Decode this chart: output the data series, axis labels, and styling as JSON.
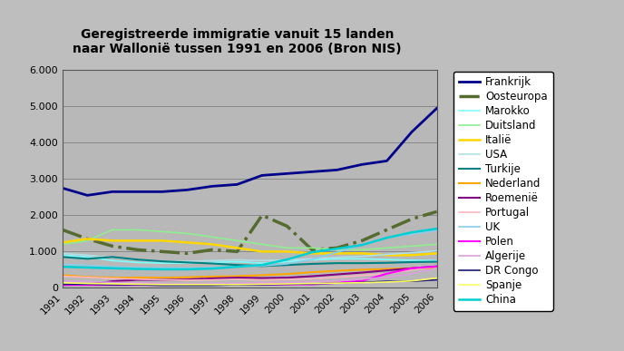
{
  "title_line1": "Geregistreerde immigratie vanuit 15 landen",
  "title_line2": "naar Wallonië tussen 1991 en 2006 (Bron NIS)",
  "years": [
    1991,
    1992,
    1993,
    1994,
    1995,
    1996,
    1997,
    1998,
    1999,
    2000,
    2001,
    2002,
    2003,
    2004,
    2005,
    2006
  ],
  "series": {
    "Frankrijk": {
      "color": "#00008B",
      "linestyle": "-",
      "linewidth": 2.0,
      "data": [
        2750,
        2550,
        2650,
        2650,
        2650,
        2700,
        2800,
        2850,
        3100,
        3150,
        3200,
        3250,
        3400,
        3500,
        4300,
        4950
      ]
    },
    "Oosteuropa": {
      "color": "#556B2F",
      "linestyle": "-.",
      "linewidth": 2.5,
      "data": [
        1600,
        1350,
        1150,
        1050,
        1000,
        950,
        1050,
        1000,
        2000,
        1700,
        1050,
        1100,
        1300,
        1600,
        1900,
        2100
      ]
    },
    "Marokko": {
      "color": "#7FFFFF",
      "linestyle": "-",
      "linewidth": 1.2,
      "data": [
        900,
        850,
        750,
        700,
        680,
        680,
        700,
        720,
        680,
        720,
        770,
        800,
        800,
        780,
        760,
        750
      ]
    },
    "Duitsland": {
      "color": "#90EE90",
      "linestyle": "-",
      "linewidth": 1.2,
      "data": [
        1200,
        1300,
        1600,
        1600,
        1550,
        1500,
        1400,
        1300,
        1200,
        1100,
        1100,
        1050,
        1050,
        1100,
        1150,
        1200
      ]
    },
    "Italië": {
      "color": "#FFD700",
      "linestyle": "-",
      "linewidth": 1.8,
      "data": [
        1250,
        1350,
        1300,
        1300,
        1300,
        1250,
        1200,
        1100,
        1000,
        1000,
        950,
        950,
        950,
        900,
        900,
        950
      ]
    },
    "USA": {
      "color": "#B0E0E6",
      "linestyle": "-",
      "linewidth": 1.2,
      "data": [
        950,
        900,
        830,
        780,
        720,
        730,
        750,
        770,
        750,
        770,
        800,
        840,
        870,
        920,
        970,
        1020
      ]
    },
    "Turkije": {
      "color": "#008080",
      "linestyle": "-",
      "linewidth": 1.5,
      "data": [
        850,
        800,
        850,
        780,
        730,
        700,
        670,
        630,
        600,
        630,
        660,
        680,
        680,
        690,
        710,
        720
      ]
    },
    "Nederland": {
      "color": "#FFA500",
      "linestyle": "-",
      "linewidth": 1.5,
      "data": [
        350,
        300,
        280,
        280,
        280,
        290,
        310,
        320,
        350,
        380,
        430,
        470,
        500,
        520,
        540,
        550
      ]
    },
    "Roemenië": {
      "color": "#800080",
      "linestyle": "-",
      "linewidth": 1.5,
      "data": [
        80,
        90,
        180,
        220,
        220,
        230,
        260,
        280,
        270,
        280,
        320,
        370,
        420,
        480,
        540,
        590
      ]
    },
    "Portugal": {
      "color": "#FFB6C1",
      "linestyle": "-",
      "linewidth": 1.2,
      "data": [
        320,
        290,
        260,
        240,
        220,
        210,
        220,
        230,
        215,
        230,
        250,
        290,
        340,
        390,
        490,
        590
      ]
    },
    "UK": {
      "color": "#87CEEB",
      "linestyle": "-",
      "linewidth": 1.2,
      "data": [
        650,
        620,
        580,
        560,
        550,
        545,
        565,
        585,
        605,
        660,
        780,
        980,
        1180,
        1380,
        1480,
        1580
      ]
    },
    "Polen": {
      "color": "#FF00FF",
      "linestyle": "-",
      "linewidth": 1.5,
      "data": [
        80,
        80,
        80,
        80,
        80,
        85,
        90,
        95,
        90,
        95,
        95,
        140,
        190,
        390,
        540,
        590
      ]
    },
    "Algerije": {
      "color": "#DDA0DD",
      "linestyle": "-",
      "linewidth": 1.2,
      "data": [
        190,
        170,
        150,
        140,
        120,
        110,
        120,
        130,
        140,
        150,
        170,
        190,
        240,
        290,
        390,
        540
      ]
    },
    "DR Congo": {
      "color": "#191970",
      "linestyle": "-",
      "linewidth": 1.2,
      "data": [
        100,
        100,
        85,
        85,
        65,
        65,
        65,
        85,
        85,
        100,
        110,
        130,
        150,
        180,
        180,
        220
      ]
    },
    "Spanje": {
      "color": "#FFFF66",
      "linestyle": "-",
      "linewidth": 1.2,
      "data": [
        140,
        120,
        110,
        100,
        90,
        90,
        90,
        90,
        100,
        110,
        120,
        130,
        140,
        160,
        190,
        270
      ]
    },
    "China": {
      "color": "#00CED1",
      "linestyle": "-",
      "linewidth": 1.8,
      "data": [
        580,
        560,
        540,
        520,
        510,
        510,
        530,
        580,
        630,
        780,
        980,
        1080,
        1180,
        1380,
        1530,
        1630
      ]
    }
  },
  "ylim": [
    0,
    6000
  ],
  "yticks": [
    0,
    1000,
    2000,
    3000,
    4000,
    5000,
    6000
  ],
  "background_color": "#BEBEBE",
  "plot_bg_color": "#B8B8B8",
  "grid_color": "#888888",
  "title_fontsize": 10,
  "legend_fontsize": 8.5
}
